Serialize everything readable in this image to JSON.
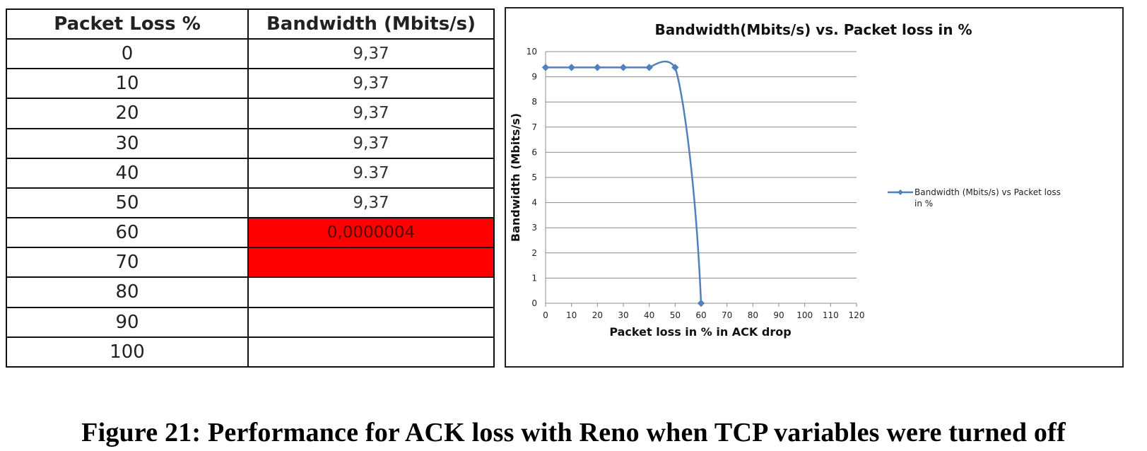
{
  "table": {
    "headers": [
      "Packet Loss %",
      "Bandwidth (Mbits/s)"
    ],
    "rows": [
      {
        "loss": "0",
        "bw": "9,37",
        "highlight": false
      },
      {
        "loss": "10",
        "bw": "9,37",
        "highlight": false
      },
      {
        "loss": "20",
        "bw": "9,37",
        "highlight": false
      },
      {
        "loss": "30",
        "bw": "9,37",
        "highlight": false
      },
      {
        "loss": "40",
        "bw": "9.37",
        "highlight": false
      },
      {
        "loss": "50",
        "bw": "9,37",
        "highlight": false
      },
      {
        "loss": "60",
        "bw": "0,0000004",
        "highlight": true
      },
      {
        "loss": "70",
        "bw": "",
        "highlight": true
      },
      {
        "loss": "80",
        "bw": "",
        "highlight": false
      },
      {
        "loss": "90",
        "bw": "",
        "highlight": false
      },
      {
        "loss": "100",
        "bw": "",
        "highlight": false
      }
    ],
    "highlight_color": "#ff0000"
  },
  "chart_data": {
    "type": "line",
    "title": "Bandwidth(Mbits/s) vs. Packet loss in %",
    "xlabel": "Packet loss in % in ACK drop",
    "ylabel": "Bandwidth (Mbits/s)",
    "x": [
      0,
      10,
      20,
      30,
      40,
      50,
      60
    ],
    "series": [
      {
        "name": "Bandwidth (Mbits/s) vs Packet loss in %",
        "values": [
          9.37,
          9.37,
          9.37,
          9.37,
          9.37,
          9.37,
          4e-07
        ],
        "color": "#4f81bd"
      }
    ],
    "xlim": [
      0,
      120
    ],
    "ylim": [
      0,
      10
    ],
    "xticks": [
      0,
      10,
      20,
      30,
      40,
      50,
      60,
      70,
      80,
      90,
      100,
      110,
      120
    ],
    "yticks": [
      0,
      1,
      2,
      3,
      4,
      5,
      6,
      7,
      8,
      9,
      10
    ],
    "grid": "horizontal",
    "legend_position": "right",
    "legend_lines": [
      "Bandwidth (Mbits/s) vs Packet loss",
      "in %"
    ]
  },
  "caption": "Figure 21: Performance  for ACK loss with Reno when TCP variables were turned off"
}
